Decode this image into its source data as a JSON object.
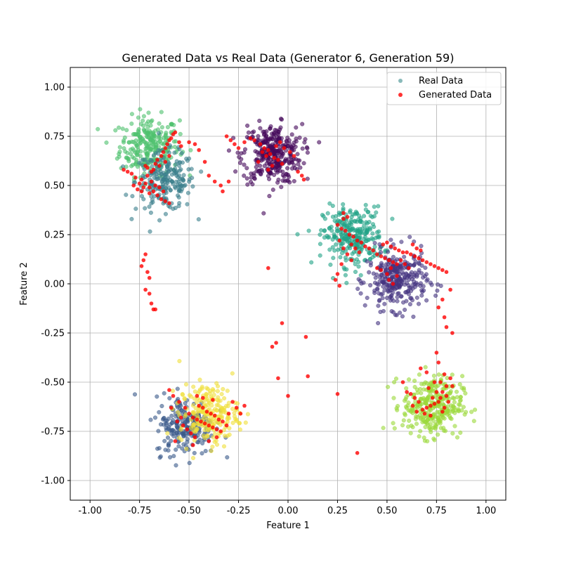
{
  "chart_data": {
    "type": "scatter",
    "title": "Generated Data vs Real Data (Generator 6, Generation 59)",
    "xlabel": "Feature 1",
    "ylabel": "Feature 2",
    "xlim": [
      -1.1,
      1.1
    ],
    "ylim": [
      -1.1,
      1.1
    ],
    "xticks": [
      "-1.00",
      "-0.75",
      "-0.50",
      "-0.25",
      "0.00",
      "0.25",
      "0.50",
      "0.75",
      "1.00"
    ],
    "yticks": [
      "-1.00",
      "-0.75",
      "-0.50",
      "-0.25",
      "0.00",
      "0.25",
      "0.50",
      "0.75",
      "1.00"
    ],
    "xtick_values": [
      -1.0,
      -0.75,
      -0.5,
      -0.25,
      0.0,
      0.25,
      0.5,
      0.75,
      1.0
    ],
    "ytick_values": [
      -1.0,
      -0.75,
      -0.5,
      -0.25,
      0.0,
      0.25,
      0.5,
      0.75,
      1.0
    ],
    "grid": true,
    "legend_position": "top-right",
    "series": [
      {
        "name": "Real Data",
        "color": "#3b8c8c",
        "clusters": [
          {
            "cx": -0.7,
            "cy": 0.7,
            "sd": 0.075,
            "n": 260,
            "color": "#4fc16e"
          },
          {
            "cx": -0.62,
            "cy": 0.52,
            "sd": 0.075,
            "n": 220,
            "color": "#3b7f8c"
          },
          {
            "cx": -0.08,
            "cy": 0.66,
            "sd": 0.075,
            "n": 320,
            "color": "#44085a"
          },
          {
            "cx": 0.33,
            "cy": 0.24,
            "sd": 0.075,
            "n": 280,
            "color": "#22a387"
          },
          {
            "cx": 0.55,
            "cy": 0.02,
            "sd": 0.075,
            "n": 300,
            "color": "#453480"
          },
          {
            "cx": 0.73,
            "cy": -0.62,
            "sd": 0.075,
            "n": 320,
            "color": "#9bd83a"
          },
          {
            "cx": -0.52,
            "cy": -0.72,
            "sd": 0.075,
            "n": 220,
            "color": "#3b5a8a"
          },
          {
            "cx": -0.4,
            "cy": -0.66,
            "sd": 0.075,
            "n": 220,
            "color": "#f0e03a"
          }
        ]
      },
      {
        "name": "Generated Data",
        "color": "#ff0000",
        "points": [
          [
            -0.74,
            0.53
          ],
          [
            -0.72,
            0.51
          ],
          [
            -0.7,
            0.49
          ],
          [
            -0.69,
            0.52
          ],
          [
            -0.71,
            0.55
          ],
          [
            -0.68,
            0.47
          ],
          [
            -0.66,
            0.45
          ],
          [
            -0.64,
            0.43
          ],
          [
            -0.62,
            0.42
          ],
          [
            -0.6,
            0.41
          ],
          [
            -0.73,
            0.49
          ],
          [
            -0.75,
            0.51
          ],
          [
            -0.77,
            0.54
          ],
          [
            -0.79,
            0.56
          ],
          [
            -0.81,
            0.57
          ],
          [
            -0.83,
            0.58
          ],
          [
            -0.67,
            0.5
          ],
          [
            -0.65,
            0.49
          ],
          [
            -0.63,
            0.47
          ],
          [
            -0.7,
            0.46
          ],
          [
            -0.68,
            0.58
          ],
          [
            -0.67,
            0.61
          ],
          [
            -0.66,
            0.63
          ],
          [
            -0.64,
            0.65
          ],
          [
            -0.63,
            0.67
          ],
          [
            -0.62,
            0.69
          ],
          [
            -0.61,
            0.71
          ],
          [
            -0.6,
            0.73
          ],
          [
            -0.59,
            0.74
          ],
          [
            -0.58,
            0.76
          ],
          [
            -0.57,
            0.77
          ],
          [
            -0.65,
            0.6
          ],
          [
            -0.69,
            0.57
          ],
          [
            -0.71,
            0.59
          ],
          [
            -0.72,
            0.6
          ],
          [
            -0.62,
            0.62
          ],
          [
            -0.6,
            0.65
          ],
          [
            -0.74,
            0.47
          ],
          [
            -0.76,
            0.48
          ],
          [
            -0.78,
            0.5
          ],
          [
            -0.55,
            0.72
          ],
          [
            -0.54,
            0.7
          ],
          [
            -0.5,
            0.72
          ],
          [
            -0.47,
            0.71
          ],
          [
            -0.45,
            0.68
          ],
          [
            -0.42,
            0.62
          ],
          [
            -0.4,
            0.55
          ],
          [
            -0.37,
            0.52
          ],
          [
            -0.34,
            0.5
          ],
          [
            -0.33,
            0.47
          ],
          [
            -0.3,
            0.52
          ],
          [
            -0.31,
            0.75
          ],
          [
            -0.29,
            0.73
          ],
          [
            -0.27,
            0.71
          ],
          [
            -0.25,
            0.69
          ],
          [
            -0.22,
            0.72
          ],
          [
            -0.19,
            0.74
          ],
          [
            -0.17,
            0.73
          ],
          [
            -0.14,
            0.71
          ],
          [
            -0.12,
            0.69
          ],
          [
            -0.1,
            0.68
          ],
          [
            -0.09,
            0.66
          ],
          [
            -0.07,
            0.64
          ],
          [
            -0.05,
            0.63
          ],
          [
            -0.03,
            0.61
          ],
          [
            -0.11,
            0.65
          ],
          [
            -0.13,
            0.67
          ],
          [
            -0.06,
            0.7
          ],
          [
            -0.04,
            0.72
          ],
          [
            -0.02,
            0.69
          ],
          [
            0.01,
            0.67
          ],
          [
            0.03,
            0.65
          ],
          [
            -0.08,
            0.6
          ],
          [
            -0.1,
            0.58
          ],
          [
            0.05,
            0.57
          ],
          [
            0.07,
            0.55
          ],
          [
            0.08,
            0.53
          ],
          [
            -0.15,
            0.62
          ],
          [
            -0.72,
            0.15
          ],
          [
            -0.73,
            0.12
          ],
          [
            -0.74,
            0.09
          ],
          [
            -0.71,
            0.06
          ],
          [
            -0.7,
            0.03
          ],
          [
            -0.72,
            -0.03
          ],
          [
            -0.7,
            -0.05
          ],
          [
            -0.69,
            -0.1
          ],
          [
            -0.68,
            -0.13
          ],
          [
            -0.67,
            -0.13
          ],
          [
            0.25,
            0.3
          ],
          [
            0.27,
            0.28
          ],
          [
            0.29,
            0.27
          ],
          [
            0.31,
            0.25
          ],
          [
            0.33,
            0.24
          ],
          [
            0.35,
            0.22
          ],
          [
            0.37,
            0.21
          ],
          [
            0.39,
            0.19
          ],
          [
            0.41,
            0.18
          ],
          [
            0.43,
            0.17
          ],
          [
            0.45,
            0.15
          ],
          [
            0.47,
            0.14
          ],
          [
            0.49,
            0.13
          ],
          [
            0.51,
            0.12
          ],
          [
            0.53,
            0.11
          ],
          [
            0.55,
            0.1
          ],
          [
            0.28,
            0.33
          ],
          [
            0.3,
            0.34
          ],
          [
            0.26,
            0.22
          ],
          [
            0.28,
            0.18
          ],
          [
            0.3,
            0.15
          ],
          [
            0.32,
            0.12
          ],
          [
            0.27,
            0.1
          ],
          [
            0.25,
            0.05
          ],
          [
            0.24,
            0.02
          ],
          [
            0.26,
            -0.01
          ],
          [
            0.28,
            0.36
          ],
          [
            0.32,
            0.2
          ],
          [
            0.34,
            0.18
          ],
          [
            0.36,
            0.16
          ],
          [
            0.48,
            0.2
          ],
          [
            0.5,
            0.21
          ],
          [
            0.52,
            0.19
          ],
          [
            0.54,
            0.18
          ],
          [
            0.56,
            0.17
          ],
          [
            0.58,
            0.16
          ],
          [
            0.6,
            0.16
          ],
          [
            0.62,
            0.15
          ],
          [
            0.64,
            0.14
          ],
          [
            0.66,
            0.13
          ],
          [
            0.68,
            0.12
          ],
          [
            0.7,
            0.11
          ],
          [
            0.72,
            0.1
          ],
          [
            0.74,
            0.09
          ],
          [
            0.76,
            0.08
          ],
          [
            0.78,
            0.07
          ],
          [
            0.8,
            0.06
          ],
          [
            0.57,
            0.12
          ],
          [
            0.59,
            0.1
          ],
          [
            0.61,
            0.08
          ],
          [
            0.52,
            0.08
          ],
          [
            0.5,
            0.05
          ],
          [
            0.51,
            0.02
          ],
          [
            0.53,
            0.0
          ],
          [
            0.55,
            0.04
          ],
          [
            0.47,
            0.07
          ],
          [
            0.45,
            0.08
          ],
          [
            0.63,
            0.2
          ],
          [
            0.65,
            0.18
          ],
          [
            0.67,
            0.17
          ],
          [
            0.82,
            -0.03
          ],
          [
            0.78,
            -0.08
          ],
          [
            0.76,
            -0.12
          ],
          [
            0.79,
            -0.17
          ],
          [
            0.8,
            -0.22
          ],
          [
            0.83,
            -0.25
          ],
          [
            0.75,
            -0.35
          ],
          [
            0.76,
            -0.4
          ],
          [
            0.79,
            -0.46
          ],
          [
            0.8,
            -0.52
          ],
          [
            0.78,
            -0.55
          ],
          [
            0.77,
            -0.58
          ],
          [
            0.76,
            -0.6
          ],
          [
            0.74,
            -0.61
          ],
          [
            0.72,
            -0.62
          ],
          [
            0.7,
            -0.63
          ],
          [
            0.68,
            -0.64
          ],
          [
            0.66,
            -0.6
          ],
          [
            0.64,
            -0.58
          ],
          [
            0.62,
            -0.56
          ],
          [
            0.6,
            -0.55
          ],
          [
            0.79,
            -0.63
          ],
          [
            0.81,
            -0.6
          ],
          [
            0.8,
            -0.57
          ],
          [
            0.78,
            -0.65
          ],
          [
            0.72,
            -0.67
          ],
          [
            0.69,
            -0.66
          ],
          [
            0.67,
            -0.43
          ],
          [
            0.7,
            -0.45
          ],
          [
            0.58,
            -0.5
          ],
          [
            0.73,
            -0.58
          ],
          [
            0.75,
            -0.55
          ],
          [
            0.71,
            -0.53
          ],
          [
            0.65,
            -0.65
          ],
          [
            0.63,
            -0.62
          ],
          [
            0.82,
            -0.48
          ],
          [
            0.83,
            -0.52
          ],
          [
            0.77,
            -0.5
          ],
          [
            0.74,
            -0.5
          ],
          [
            -0.1,
            0.08
          ],
          [
            -0.03,
            -0.2
          ],
          [
            -0.06,
            -0.3
          ],
          [
            -0.08,
            -0.32
          ],
          [
            0.09,
            -0.27
          ],
          [
            0.0,
            -0.57
          ],
          [
            -0.05,
            -0.48
          ],
          [
            0.1,
            -0.47
          ],
          [
            0.25,
            -0.56
          ],
          [
            0.35,
            -0.86
          ],
          [
            -0.6,
            -0.54
          ],
          [
            -0.58,
            -0.57
          ],
          [
            -0.55,
            -0.6
          ],
          [
            -0.52,
            -0.63
          ],
          [
            -0.5,
            -0.66
          ],
          [
            -0.48,
            -0.68
          ],
          [
            -0.46,
            -0.69
          ],
          [
            -0.44,
            -0.7
          ],
          [
            -0.42,
            -0.71
          ],
          [
            -0.4,
            -0.72
          ],
          [
            -0.38,
            -0.73
          ],
          [
            -0.36,
            -0.74
          ],
          [
            -0.34,
            -0.75
          ],
          [
            -0.45,
            -0.62
          ],
          [
            -0.43,
            -0.63
          ],
          [
            -0.41,
            -0.65
          ],
          [
            -0.39,
            -0.66
          ],
          [
            -0.37,
            -0.67
          ],
          [
            -0.35,
            -0.69
          ],
          [
            -0.33,
            -0.7
          ],
          [
            -0.31,
            -0.72
          ],
          [
            -0.53,
            -0.72
          ],
          [
            -0.51,
            -0.74
          ],
          [
            -0.49,
            -0.76
          ],
          [
            -0.47,
            -0.78
          ],
          [
            -0.56,
            -0.7
          ],
          [
            -0.54,
            -0.68
          ],
          [
            -0.3,
            -0.66
          ],
          [
            -0.28,
            -0.6
          ],
          [
            -0.26,
            -0.63
          ],
          [
            -0.24,
            -0.66
          ],
          [
            -0.22,
            -0.62
          ],
          [
            -0.57,
            -0.8
          ],
          [
            -0.48,
            -0.82
          ],
          [
            -0.4,
            -0.8
          ],
          [
            -0.36,
            -0.78
          ],
          [
            -0.43,
            -0.58
          ],
          [
            -0.38,
            -0.59
          ],
          [
            -0.46,
            -0.57
          ],
          [
            -0.59,
            -0.63
          ]
        ]
      }
    ]
  }
}
